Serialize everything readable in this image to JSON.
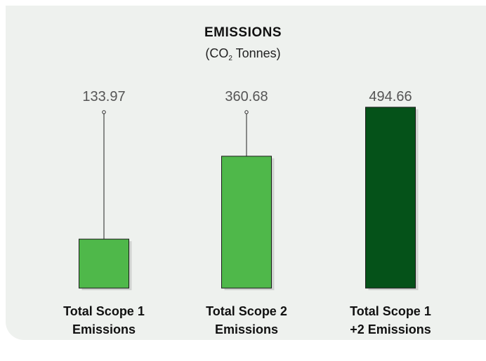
{
  "chart_data": {
    "type": "bar",
    "title": "EMISSIONS",
    "subtitle_prefix": "(CO",
    "subtitle_sub": "2",
    "subtitle_suffix": " Tonnes)",
    "categories": [
      [
        "Total Scope 1",
        "Emissions"
      ],
      [
        "Total Scope 2",
        "Emissions"
      ],
      [
        "Total Scope 1",
        "+2 Emissions"
      ]
    ],
    "values": [
      133.97,
      360.68,
      494.66
    ],
    "value_labels": [
      "133.97",
      "360.68",
      "494.66"
    ],
    "colors": [
      "#4fb84a",
      "#4fb84a",
      "#055219"
    ],
    "ylim": [
      0,
      600
    ],
    "grid": false
  }
}
